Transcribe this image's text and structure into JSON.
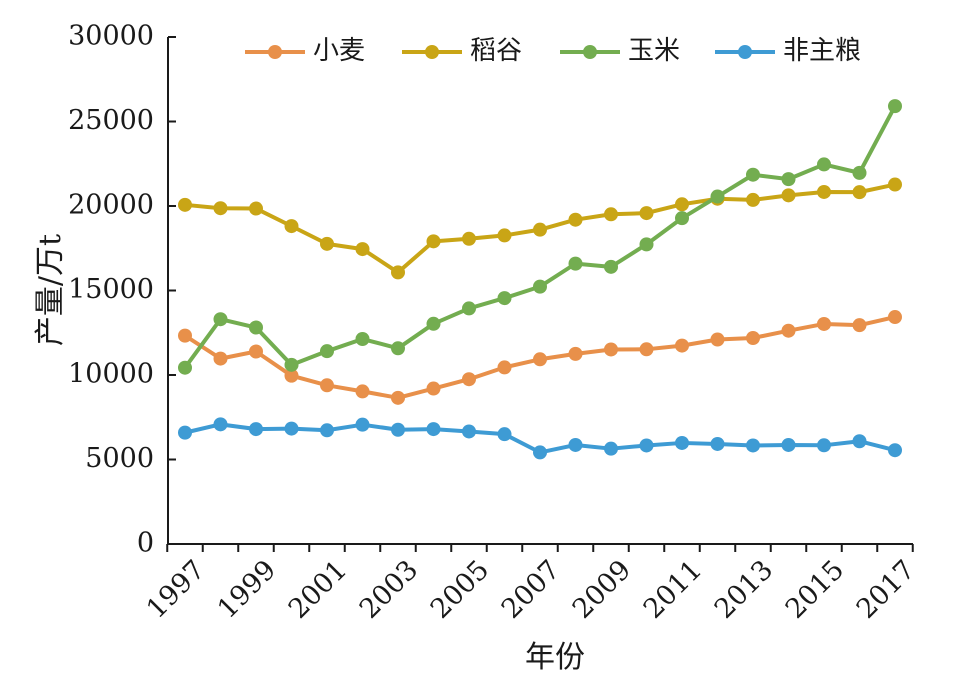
{
  "chart_data": {
    "type": "line",
    "xlabel": "年份",
    "ylabel": "产量/万t",
    "ylim": [
      0,
      30000
    ],
    "yticks": [
      0,
      5000,
      10000,
      15000,
      20000,
      25000,
      30000
    ],
    "xtick_labels": [
      "1997",
      "1999",
      "2001",
      "2003",
      "2005",
      "2007",
      "2009",
      "2011",
      "2013",
      "2015",
      "2017"
    ],
    "x": [
      1997,
      1998,
      1999,
      2000,
      2001,
      2002,
      2003,
      2004,
      2005,
      2006,
      2007,
      2008,
      2009,
      2010,
      2011,
      2012,
      2013,
      2014,
      2015,
      2016,
      2017
    ],
    "legend_position": "top",
    "grid": false,
    "series": [
      {
        "name": "小麦",
        "color": "#E8904A",
        "values": [
          12330,
          10970,
          11390,
          9960,
          9390,
          9030,
          8650,
          9200,
          9750,
          10450,
          10930,
          11250,
          11510,
          11520,
          11740,
          12100,
          12190,
          12620,
          13020,
          12950,
          13430
        ]
      },
      {
        "name": "稻谷",
        "color": "#C9A516",
        "values": [
          20070,
          19870,
          19850,
          18810,
          17760,
          17450,
          16070,
          17910,
          18060,
          18260,
          18600,
          19190,
          19510,
          19580,
          20100,
          20430,
          20360,
          20630,
          20830,
          20820,
          21270
        ]
      },
      {
        "name": "玉米",
        "color": "#73AD50",
        "values": [
          10430,
          13300,
          12810,
          10600,
          11410,
          12130,
          11580,
          13030,
          13940,
          14550,
          15230,
          16590,
          16400,
          17730,
          19280,
          20560,
          21850,
          21590,
          22460,
          21960,
          25910
        ]
      },
      {
        "name": "非主粮",
        "color": "#3E9BD4",
        "values": [
          6590,
          7080,
          6800,
          6830,
          6730,
          7060,
          6760,
          6800,
          6660,
          6500,
          5420,
          5860,
          5640,
          5830,
          5980,
          5920,
          5830,
          5860,
          5840,
          6080,
          5550
        ]
      }
    ]
  }
}
